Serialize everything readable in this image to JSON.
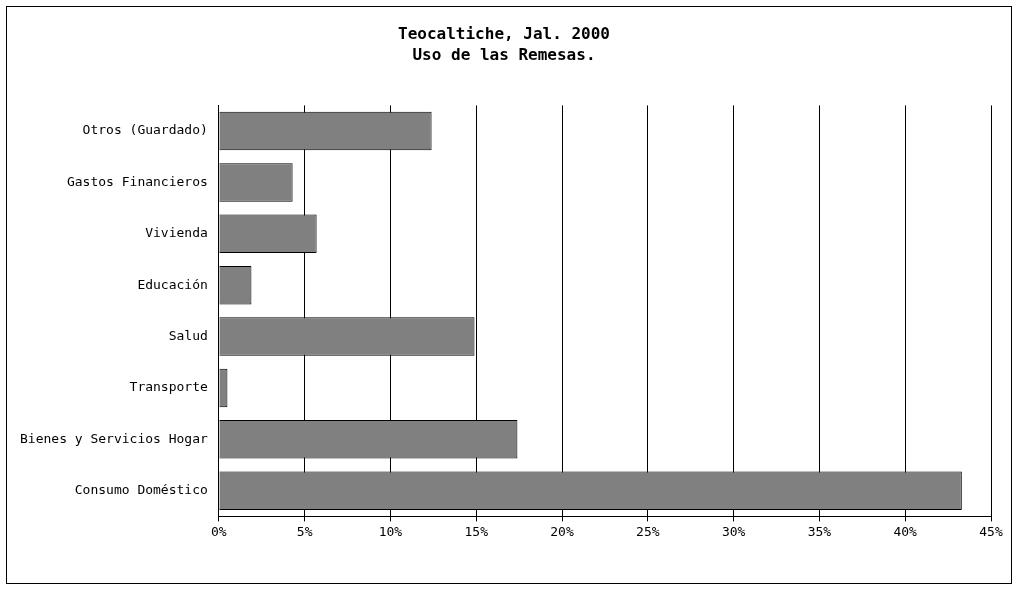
{
  "chart_data": {
    "type": "bar",
    "orientation": "horizontal",
    "title": "Teocaltiche, Jal. 2000",
    "subtitle": "Uso de las Remesas.",
    "categories": [
      "Otros (Guardado)",
      "Gastos Financieros",
      "Vivienda",
      "Educación",
      "Salud",
      "Transporte",
      "Bienes y Servicios Hogar",
      "Consumo Doméstico"
    ],
    "values": [
      12.4,
      4.3,
      5.7,
      1.9,
      14.9,
      0.5,
      17.4,
      43.3
    ],
    "color": "#808080",
    "xlim": [
      0,
      45
    ],
    "xticks": [
      {
        "value": 0,
        "label": "0%"
      },
      {
        "value": 5,
        "label": "5%"
      },
      {
        "value": 10,
        "label": "10%"
      },
      {
        "value": 15,
        "label": "15%"
      },
      {
        "value": 20,
        "label": "20%"
      },
      {
        "value": 25,
        "label": "25%"
      },
      {
        "value": 30,
        "label": "30%"
      },
      {
        "value": 35,
        "label": "35%"
      },
      {
        "value": 40,
        "label": "40%"
      },
      {
        "value": 45,
        "label": "45%"
      }
    ],
    "grid": "x"
  }
}
